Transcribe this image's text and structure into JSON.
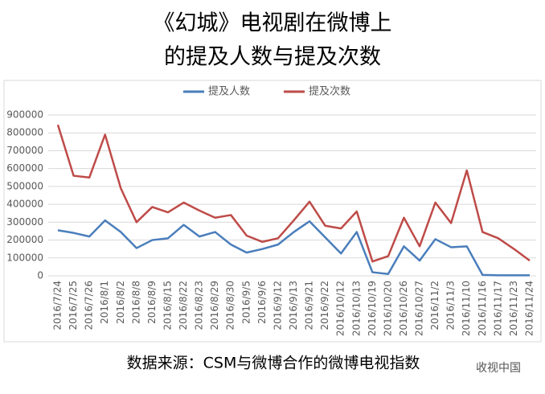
{
  "chart_data": {
    "type": "line",
    "title": [
      "《幻城》电视剧在微博上",
      "的提及人数与提及次数"
    ],
    "source": "数据来源：CSM与微博合作的微博电视指数",
    "watermark": "收视中国",
    "categories": [
      "2016/7/24",
      "2016/7/25",
      "2016/7/26",
      "2016/8/1",
      "2016/8/2",
      "2016/8/8",
      "2016/8/9",
      "2016/8/15",
      "2016/8/22",
      "2016/8/23",
      "2016/8/29",
      "2016/8/30",
      "2016/9/5",
      "2016/9/6",
      "2016/9/12",
      "2016/9/13",
      "2016/9/21",
      "2016/9/22",
      "2016/10/12",
      "2016/10/13",
      "2016/10/19",
      "2016/10/20",
      "2016/10/26",
      "2016/10/27",
      "2016/11/2",
      "2016/11/3",
      "2016/11/10",
      "2016/11/16",
      "2016/11/17",
      "2016/11/23",
      "2016/11/24"
    ],
    "series": [
      {
        "name": "提及人数",
        "color": "#4a7ebb",
        "values": [
          255000,
          240000,
          220000,
          310000,
          245000,
          155000,
          200000,
          210000,
          285000,
          220000,
          245000,
          175000,
          130000,
          150000,
          175000,
          245000,
          305000,
          215000,
          125000,
          245000,
          20000,
          10000,
          165000,
          85000,
          205000,
          160000,
          165000,
          5000,
          3000,
          3000,
          3000
        ]
      },
      {
        "name": "提及次数",
        "color": "#be4b48",
        "values": [
          845000,
          560000,
          550000,
          790000,
          490000,
          300000,
          385000,
          355000,
          410000,
          365000,
          325000,
          340000,
          225000,
          190000,
          210000,
          310000,
          415000,
          280000,
          265000,
          360000,
          80000,
          110000,
          325000,
          165000,
          410000,
          295000,
          590000,
          245000,
          210000,
          150000,
          85000
        ]
      }
    ],
    "ylim": [
      0,
      900000
    ],
    "yticks": [
      0,
      100000,
      200000,
      300000,
      400000,
      500000,
      600000,
      700000,
      800000,
      900000
    ],
    "grid": true,
    "legend": "top"
  }
}
